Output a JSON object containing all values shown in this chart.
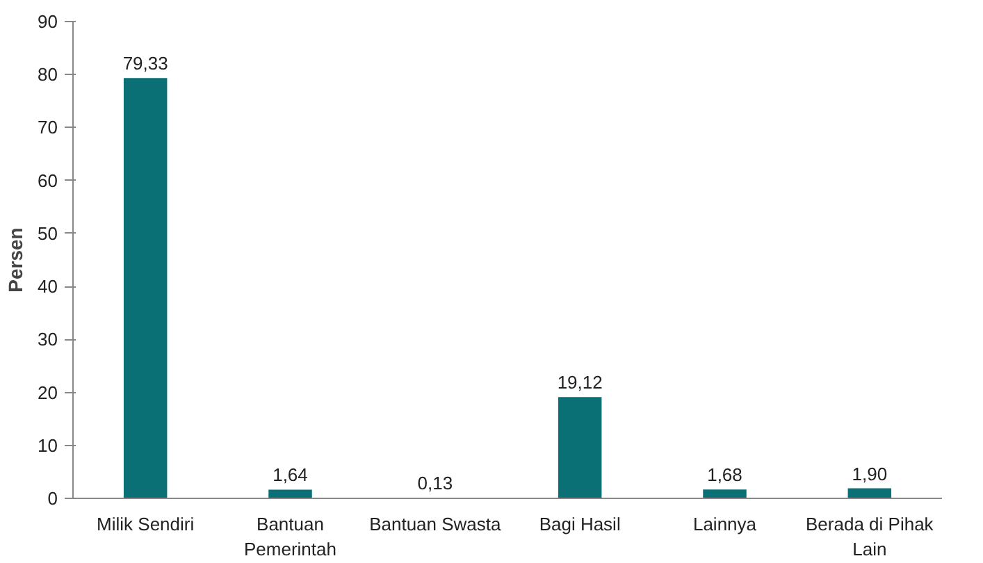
{
  "chart_data": {
    "type": "bar",
    "ylabel": "Persen",
    "categories": [
      "Milik Sendiri",
      "Bantuan Pemerintah",
      "Bantuan Swasta",
      "Bagi Hasil",
      "Lainnya",
      "Berada di Pihak Lain"
    ],
    "values": [
      79.33,
      1.64,
      0.13,
      19.12,
      1.68,
      1.9
    ],
    "value_labels": [
      "79,33",
      "1,64",
      "0,13",
      "19,12",
      "1,68",
      "1,90"
    ],
    "color": "#0b7075",
    "ylim": [
      0,
      90
    ],
    "yticks": [
      0,
      10,
      20,
      30,
      40,
      50,
      60,
      70,
      80,
      90
    ],
    "grid": false
  }
}
